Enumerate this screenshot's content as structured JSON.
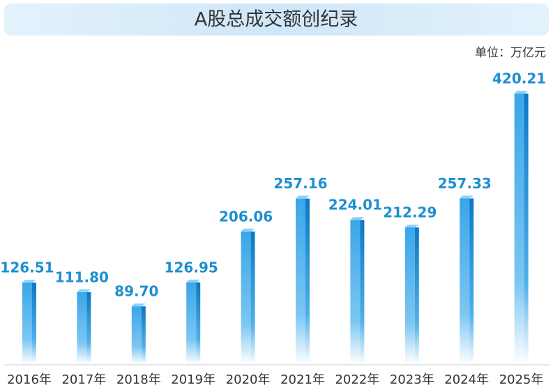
{
  "chart_data": {
    "type": "bar",
    "title": "A股总成交额创纪录",
    "unit_label": "单位：万亿元",
    "categories": [
      "2016年",
      "2017年",
      "2018年",
      "2019年",
      "2020年",
      "2021年",
      "2022年",
      "2023年",
      "2024年",
      "2025年"
    ],
    "values": [
      126.51,
      111.8,
      89.7,
      126.95,
      206.06,
      257.16,
      224.01,
      212.29,
      257.33,
      420.21
    ],
    "value_labels": [
      "126.51",
      "111.80",
      "89.70",
      "126.95",
      "206.06",
      "257.16",
      "224.01",
      "212.29",
      "257.33",
      "420.21"
    ],
    "color": "#1a8fd6"
  }
}
